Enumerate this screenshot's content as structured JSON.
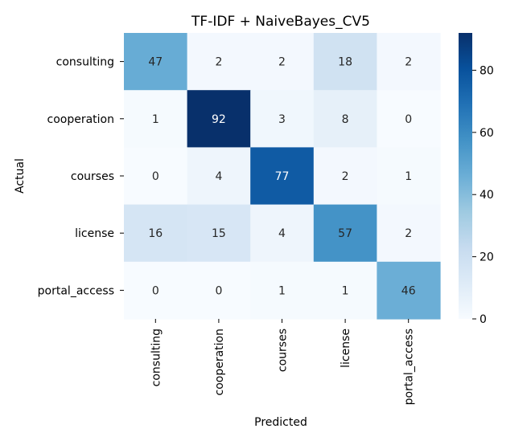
{
  "chart_data": {
    "type": "heatmap",
    "title": "TF-IDF + NaiveBayes_CV5",
    "xlabel": "Predicted",
    "ylabel": "Actual",
    "x_categories": [
      "consulting",
      "cooperation",
      "courses",
      "license",
      "portal_access"
    ],
    "y_categories": [
      "consulting",
      "cooperation",
      "courses",
      "license",
      "portal_access"
    ],
    "values": [
      [
        47,
        2,
        2,
        18,
        2
      ],
      [
        1,
        92,
        3,
        8,
        0
      ],
      [
        0,
        4,
        77,
        2,
        1
      ],
      [
        16,
        15,
        4,
        57,
        2
      ],
      [
        0,
        0,
        1,
        1,
        46
      ]
    ],
    "colorbar": {
      "min": 0,
      "max": 92,
      "ticks": [
        0,
        20,
        40,
        60,
        80
      ],
      "colormap": "Blues"
    }
  }
}
